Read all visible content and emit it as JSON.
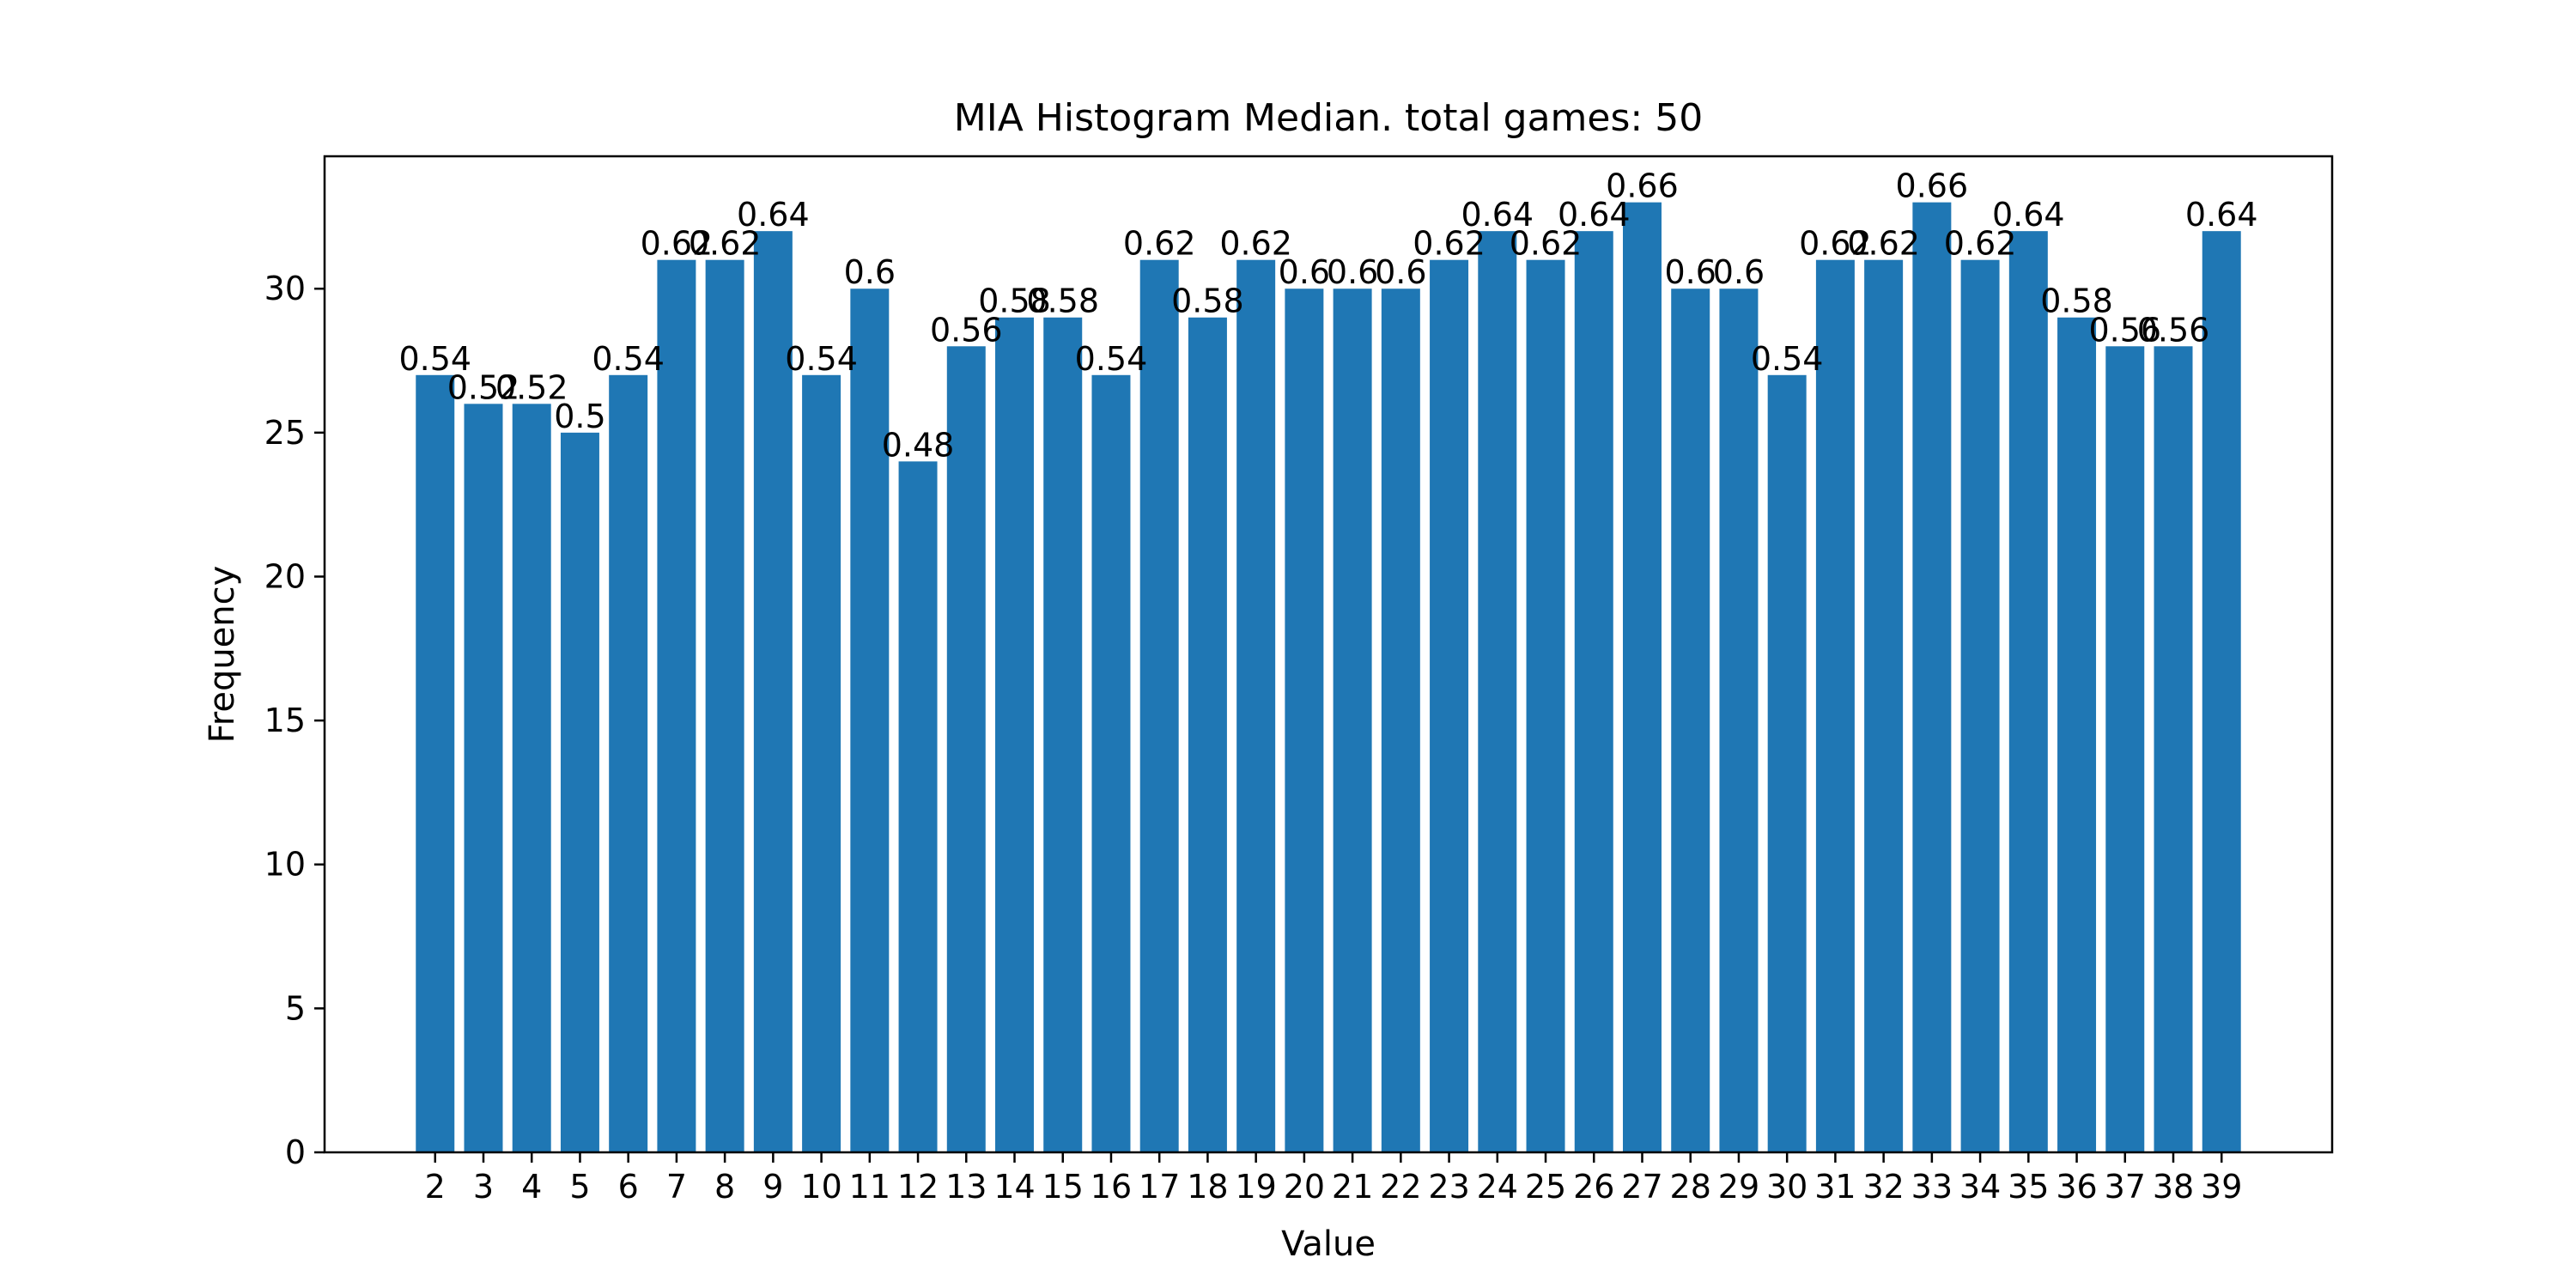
{
  "chart_data": {
    "type": "bar",
    "title": "MIA Histogram Median. total games: 50",
    "xlabel": "Value",
    "ylabel": "Frequency",
    "ylim": [
      0,
      34.6
    ],
    "yticks": [
      0,
      5,
      10,
      15,
      20,
      25,
      30
    ],
    "grid": false,
    "bar_color": "#1f77b4",
    "categories": [
      "2",
      "3",
      "4",
      "5",
      "6",
      "7",
      "8",
      "9",
      "10",
      "11",
      "12",
      "13",
      "14",
      "15",
      "16",
      "17",
      "18",
      "19",
      "20",
      "21",
      "22",
      "23",
      "24",
      "25",
      "26",
      "27",
      "28",
      "29",
      "30",
      "31",
      "32",
      "33",
      "34",
      "35",
      "36",
      "37",
      "38",
      "39"
    ],
    "values": [
      27,
      26,
      26,
      25,
      27,
      31,
      31,
      32,
      27,
      30,
      24,
      28,
      29,
      29,
      27,
      31,
      29,
      31,
      30,
      30,
      30,
      31,
      32,
      31,
      32,
      33,
      30,
      30,
      27,
      31,
      31,
      33,
      31,
      32,
      29,
      28,
      28,
      32
    ],
    "data_labels": [
      "0.54",
      "0.52",
      "0.52",
      "0.5",
      "0.54",
      "0.62",
      "0.62",
      "0.64",
      "0.54",
      "0.6",
      "0.48",
      "0.56",
      "0.58",
      "0.58",
      "0.54",
      "0.62",
      "0.58",
      "0.62",
      "0.6",
      "0.6",
      "0.6",
      "0.62",
      "0.64",
      "0.62",
      "0.64",
      "0.66",
      "0.6",
      "0.6",
      "0.54",
      "0.62",
      "0.62",
      "0.66",
      "0.62",
      "0.64",
      "0.58",
      "0.56",
      "0.56",
      "0.64"
    ]
  }
}
